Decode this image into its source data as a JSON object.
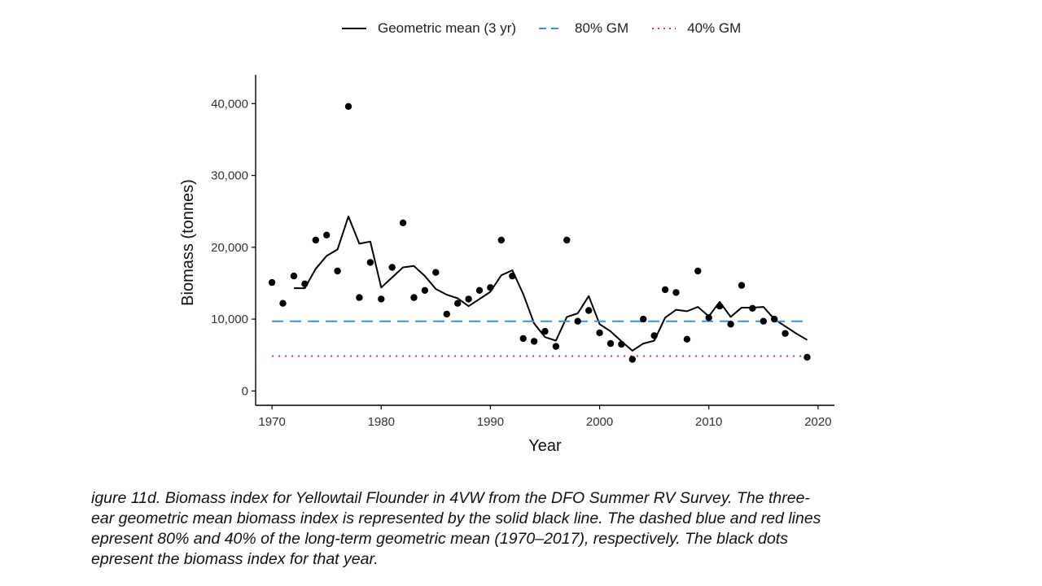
{
  "chart_data": {
    "type": "scatter",
    "xlabel": "Year",
    "ylabel": "Biomass (tonnes)",
    "xlim": [
      1968.5,
      2021.5
    ],
    "ylim": [
      -2000,
      44000
    ],
    "x_ticks": [
      1970,
      1980,
      1990,
      2000,
      2010,
      2020
    ],
    "y_ticks": [
      0,
      10000,
      20000,
      30000,
      40000
    ],
    "y_tick_labels": [
      "0",
      "10,000",
      "20,000",
      "30,000",
      "40,000"
    ],
    "grid": false,
    "legend_position": "top",
    "points": {
      "name": "",
      "color": "#000000",
      "x": [
        1970,
        1971,
        1972,
        1973,
        1974,
        1975,
        1976,
        1977,
        1978,
        1979,
        1980,
        1981,
        1982,
        1983,
        1984,
        1985,
        1986,
        1987,
        1988,
        1989,
        1990,
        1991,
        1992,
        1993,
        1994,
        1995,
        1996,
        1997,
        1998,
        1999,
        2000,
        2001,
        2002,
        2003,
        2004,
        2005,
        2006,
        2007,
        2008,
        2009,
        2010,
        2011,
        2012,
        2013,
        2014,
        2015,
        2016,
        2017,
        2019
      ],
      "y": [
        15100,
        12200,
        16000,
        14900,
        21000,
        21700,
        16700,
        39600,
        13000,
        17900,
        12800,
        17200,
        23400,
        13000,
        14000,
        16500,
        10700,
        12200,
        12800,
        14000,
        14400,
        21000,
        16000,
        7300,
        6900,
        8300,
        6200,
        21000,
        9700,
        11200,
        8100,
        6600,
        6500,
        4400,
        10000,
        7700,
        14100,
        13700,
        7200,
        16700,
        10200,
        11800,
        9300,
        14700,
        11500,
        9700,
        10000,
        8000,
        4700
      ]
    },
    "series": [
      {
        "name": "Geometric mean (3 yr)",
        "style": "solid",
        "color": "#000000",
        "x": [
          1972,
          1973,
          1974,
          1975,
          1976,
          1977,
          1978,
          1979,
          1980,
          1981,
          1982,
          1983,
          1984,
          1985,
          1986,
          1987,
          1988,
          1989,
          1990,
          1991,
          1992,
          1993,
          1994,
          1995,
          1996,
          1997,
          1998,
          1999,
          2000,
          2001,
          2002,
          2003,
          2004,
          2005,
          2006,
          2007,
          2008,
          2009,
          2010,
          2011,
          2012,
          2013,
          2014,
          2015,
          2016,
          2017,
          2018,
          2019
        ],
        "y": [
          14300,
          14300,
          17000,
          18800,
          19700,
          24300,
          20500,
          20800,
          14400,
          15800,
          17200,
          17400,
          16000,
          14200,
          13400,
          12900,
          11800,
          12800,
          13800,
          16100,
          16800,
          13500,
          9400,
          7500,
          7000,
          10300,
          10800,
          13200,
          9300,
          8300,
          6900,
          5600,
          6600,
          7000,
          10200,
          11300,
          11100,
          11700,
          10400,
          12400,
          10300,
          11600,
          11600,
          11700,
          10000,
          9000,
          8000,
          7100
        ]
      },
      {
        "name": "80% GM",
        "style": "dashed",
        "color": "#3a8fdc",
        "x": [
          1970,
          2019
        ],
        "y": [
          9700,
          9700
        ]
      },
      {
        "name": "40% GM",
        "style": "dotted",
        "color": "#e0303a",
        "x": [
          1970,
          2019
        ],
        "y": [
          4850,
          4850
        ]
      }
    ]
  },
  "caption_lines": [
    "igure 11d. Biomass index for Yellowtail Flounder in 4VW from the DFO Summer RV Survey. The three-",
    "ear geometric mean biomass index is represented by the solid black line. The dashed blue and red lines",
    "epresent 80% and 40% of the long-term geometric mean (1970–2017), respectively. The black dots",
    "epresent the biomass index for that year."
  ]
}
